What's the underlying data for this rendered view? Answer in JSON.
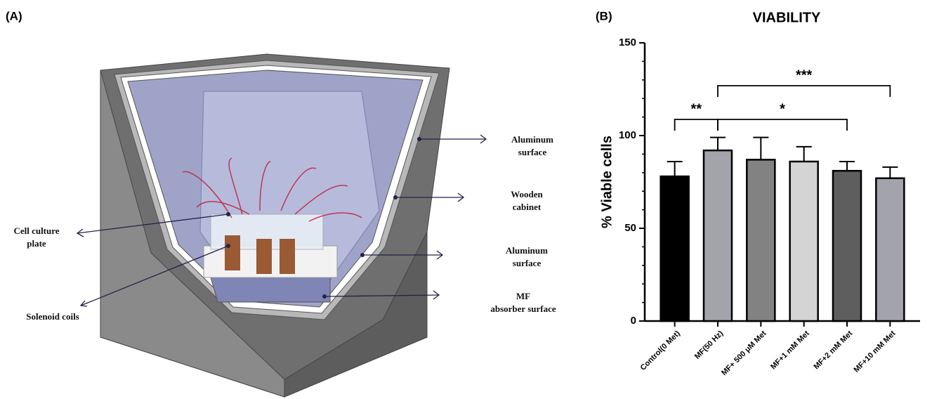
{
  "panel_a": {
    "label": "(A)",
    "callouts": [
      {
        "lines": [
          "Aluminum",
          "surface"
        ]
      },
      {
        "lines": [
          "Wooden",
          "cabinet"
        ]
      },
      {
        "lines": [
          "Cell culture",
          "plate"
        ]
      },
      {
        "lines": [
          "Aluminum",
          "surface"
        ]
      },
      {
        "lines": [
          "MF",
          "absorber surface"
        ]
      },
      {
        "lines": [
          "Solenoid coils"
        ]
      }
    ]
  },
  "panel_b": {
    "label": "(B)"
  },
  "chart_data": {
    "type": "bar",
    "title": "VIABILITY",
    "y_label": "% Viable cells",
    "categories": [
      "Control(0 Met)",
      "MF(50 Hz)",
      "MF+ 500 μM Met",
      "MF+1 mM Met",
      "MF+2 mM Met",
      "MF+10 mM Met"
    ],
    "values": [
      78,
      92,
      87,
      86,
      81,
      77
    ],
    "errors": [
      8,
      7,
      12,
      8,
      5,
      6
    ],
    "colors": [
      "#000000",
      "#a3a3ab",
      "#828282",
      "#d4d4d4",
      "#5e5e5e",
      "#a3a3ab"
    ],
    "ylim": [
      0,
      150
    ],
    "yticks": [
      0,
      50,
      100,
      150
    ],
    "yminorticks": [
      10,
      20,
      30,
      40,
      60,
      70,
      80,
      90,
      110,
      120,
      130,
      140
    ],
    "annotations": [
      {
        "text": "**"
      },
      {
        "text": "*"
      },
      {
        "text": "***"
      }
    ]
  }
}
